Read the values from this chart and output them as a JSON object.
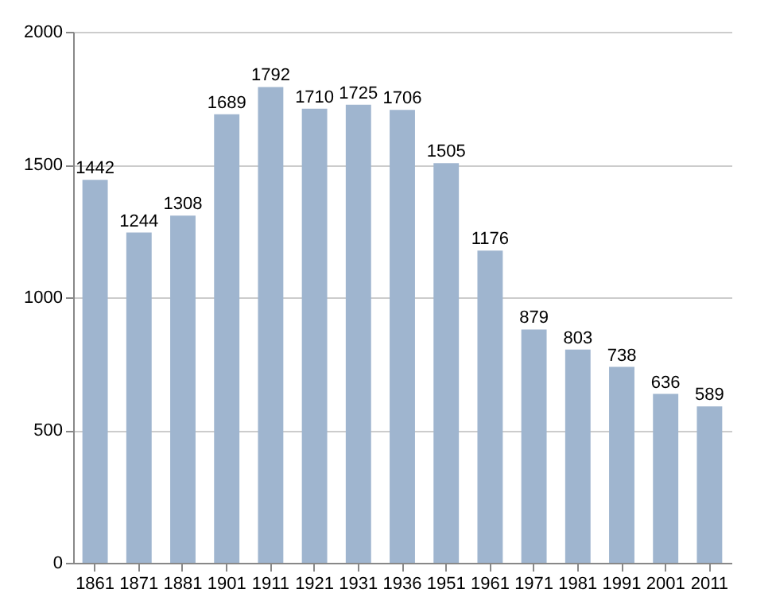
{
  "chart_data": {
    "type": "bar",
    "categories": [
      "1861",
      "1871",
      "1881",
      "1901",
      "1911",
      "1921",
      "1931",
      "1936",
      "1951",
      "1961",
      "1971",
      "1981",
      "1991",
      "2001",
      "2011"
    ],
    "values": [
      1442,
      1244,
      1308,
      1689,
      1792,
      1710,
      1725,
      1706,
      1505,
      1176,
      879,
      803,
      738,
      636,
      589
    ],
    "color": "#9fb5cf",
    "ylim": [
      0,
      2000
    ],
    "yticks": [
      0,
      500,
      1000,
      1500,
      2000
    ],
    "grid": "y",
    "data_labels": true
  }
}
